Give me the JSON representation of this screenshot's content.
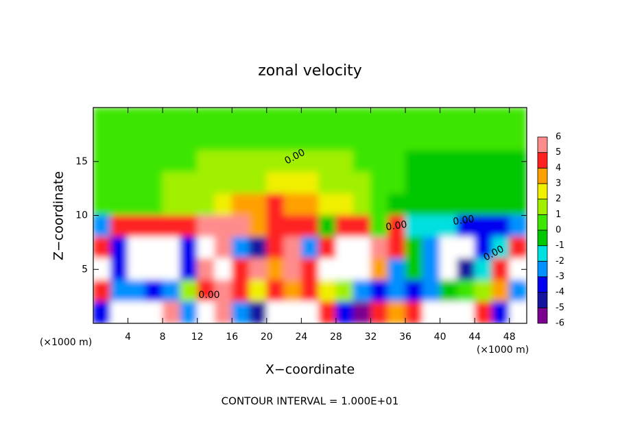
{
  "chart_data": {
    "type": "heatmap",
    "title": "zonal velocity",
    "x_label": "X−coordinate",
    "y_label": "Z−coordinate",
    "x_unit": "(×1000 m)",
    "y_unit": "(×1000 m)",
    "footer": "CONTOUR INTERVAL = 1.000E+01",
    "contour_labels": [
      "0.00",
      "0.00",
      "0.00",
      "0.00",
      "0.00"
    ],
    "xlim": [
      0,
      50
    ],
    "ylim": [
      0,
      20
    ],
    "xticks": [
      4,
      8,
      12,
      16,
      20,
      24,
      28,
      32,
      36,
      40,
      44,
      48
    ],
    "yticks": [
      5,
      10,
      15
    ],
    "x": [
      1,
      3,
      5,
      7,
      9,
      11,
      13,
      15,
      17,
      19,
      21,
      23,
      25,
      27,
      29,
      31,
      33,
      35,
      37,
      39,
      41,
      43,
      45,
      47,
      49
    ],
    "y": [
      19,
      17,
      15,
      13,
      11,
      9,
      7,
      5,
      3,
      1
    ],
    "z": [
      [
        0.5,
        0.5,
        0.5,
        0.5,
        0.5,
        0.5,
        0.5,
        0.5,
        0.5,
        0.5,
        0.5,
        0.5,
        0.5,
        0.5,
        0.5,
        0.5,
        0.5,
        0.5,
        0.5,
        0.5,
        0.5,
        0.5,
        0.5,
        0.5,
        0.5
      ],
      [
        0.3,
        0.6,
        0.6,
        0.6,
        0.6,
        0.6,
        0.6,
        0.6,
        0.6,
        0.6,
        0.5,
        0.5,
        0.5,
        0.5,
        0.5,
        0.5,
        0.5,
        0.5,
        0.5,
        0.5,
        0.3,
        0.3,
        0.3,
        0.3,
        0.3
      ],
      [
        0.5,
        0.8,
        0.8,
        0.8,
        0.8,
        0.8,
        1.0,
        1.0,
        1.0,
        1.2,
        1.2,
        1.2,
        1.5,
        1.2,
        1.0,
        0.6,
        0.3,
        0.1,
        -0.2,
        -0.3,
        -0.3,
        -0.3,
        -0.3,
        -0.3,
        -0.3
      ],
      [
        0.5,
        0.6,
        0.8,
        0.8,
        1.0,
        1.0,
        1.2,
        1.2,
        1.5,
        1.8,
        2.0,
        2.2,
        2.0,
        1.8,
        1.5,
        1.0,
        0.5,
        0.1,
        -0.3,
        -0.5,
        -0.5,
        -0.5,
        -0.5,
        -0.5,
        -0.5
      ],
      [
        0.3,
        0.3,
        0.5,
        0.8,
        1.0,
        1.2,
        1.5,
        2.0,
        3.0,
        3.5,
        4.2,
        3.5,
        3.0,
        2.5,
        2.0,
        1.0,
        0.3,
        -0.2,
        -0.5,
        -0.3,
        -0.5,
        -0.8,
        -0.5,
        -0.3,
        -0.3
      ],
      [
        -3,
        4,
        4,
        4,
        4,
        4,
        5,
        5,
        5,
        3,
        4,
        4,
        4,
        -1,
        4,
        4,
        0,
        4,
        -2,
        -2,
        -2,
        -4,
        -4,
        -4,
        -3
      ],
      [
        4,
        -4,
        -7,
        -7,
        -7,
        -4,
        8,
        5,
        -3,
        -5,
        4,
        5,
        -3,
        4,
        8,
        8,
        5,
        4,
        -1,
        -3,
        -7,
        -7,
        -4,
        -2,
        4
      ],
      [
        8,
        -4,
        -7,
        -7,
        -7,
        -4,
        5,
        8,
        4,
        5,
        3,
        5,
        4,
        8,
        8,
        8,
        3,
        -3,
        -1,
        -3,
        -7,
        -5,
        -2,
        4,
        8
      ],
      [
        4,
        -3,
        -3,
        -4,
        -3,
        1,
        4,
        5,
        4,
        2,
        4,
        3,
        4,
        2,
        1,
        -3,
        -4,
        -3,
        -4,
        -3,
        -1,
        0,
        1,
        3,
        -3
      ],
      [
        -4,
        8,
        8,
        8,
        5,
        -3,
        8,
        5,
        -3,
        -5,
        8,
        8,
        8,
        4,
        -4,
        -6,
        4,
        3,
        4,
        8,
        8,
        8,
        4,
        -4,
        8
      ]
    ],
    "colorbar": {
      "levels": [
        -6,
        -5,
        -4,
        -3,
        -2,
        -1,
        0,
        1,
        2,
        3,
        4,
        5,
        6
      ],
      "colors": [
        "#7a0090",
        "#1414a0",
        "#0000f0",
        "#0090ff",
        "#00e0e0",
        "#00c800",
        "#3ce600",
        "#a0f000",
        "#f0f000",
        "#ffa000",
        "#ff2020",
        "#ff8c8c"
      ],
      "out_of_range_color": "#ffffff"
    }
  }
}
